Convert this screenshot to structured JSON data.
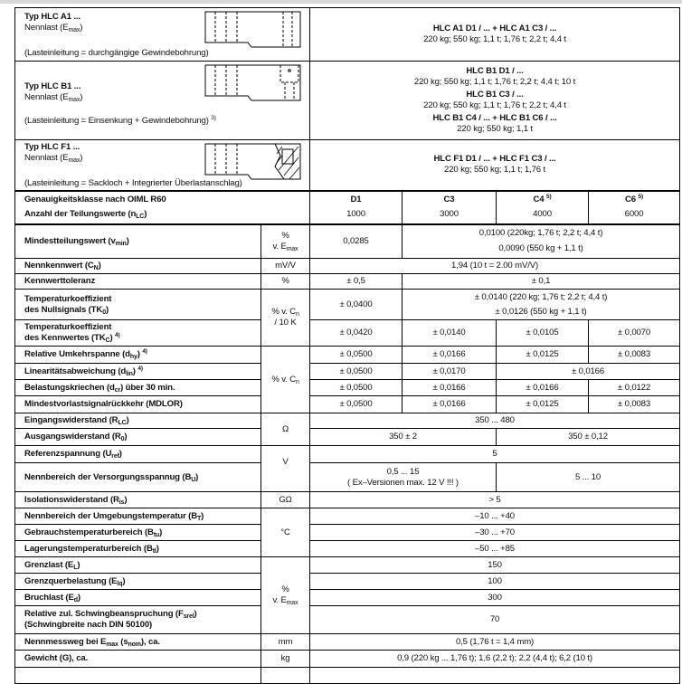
{
  "types": [
    {
      "title": "Typ HLC A1 ...",
      "nennlast": "Nennlast (E",
      "nennlast_sub": "max",
      "nennlast_end": ")",
      "note": "(Lasteinleitung = durchgängige Gewindebohrung)",
      "note_fn": "",
      "models": [
        {
          "name": "HLC A1 D1 / ... + HLC A1 C3 / ...",
          "loads": "220 kg;  550 kg;  1,1 t;  1,76 t;  2,2 t;  4,4 t"
        }
      ]
    },
    {
      "title": "Typ HLC B1 ...",
      "nennlast": "Nennlast (E",
      "nennlast_sub": "max",
      "nennlast_end": ")",
      "note": "(Lasteinleitung = Einsenkung + Gewindebohrung)",
      "note_fn": "3)",
      "models": [
        {
          "name": "HLC B1 D1 / ...",
          "loads": "220 kg;  550 kg;  1,1 t;  1,76 t;  2,2 t;  4,4 t;  10 t"
        },
        {
          "name": "HLC B1 C3 / ...",
          "loads": "220 kg;  550 kg;  1,1 t;  1,76 t;  2,2 t;  4,4 t"
        },
        {
          "name": "HLC B1 C4 / ... + HLC B1 C6 / ...",
          "loads": "220 kg;  550 kg;  1,1 t"
        }
      ]
    },
    {
      "title": "Typ HLC F1 ...",
      "nennlast": "Nennlast (E",
      "nennlast_sub": "max",
      "nennlast_end": ")",
      "note": "(Lasteinleitung = Sackloch + Integrierter Überlastanschlag)",
      "note_fn": "",
      "models": [
        {
          "name": "HLC F1 D1 / ... + HLC F1 C3 / ...",
          "loads": "220 kg;  550 kg;  1,1 t;  1,76 t"
        }
      ]
    }
  ],
  "header": {
    "label1": "Genauigkeitsklasse nach OIML R60",
    "label2": "Anzahl der Teilungswerte (n",
    "label2_sub": "LC",
    "label2_end": ")",
    "classes": [
      {
        "name": "D1",
        "fn": "",
        "n": "1000"
      },
      {
        "name": "C3",
        "fn": "",
        "n": "3000"
      },
      {
        "name": "C4",
        "fn": "5)",
        "n": "4000"
      },
      {
        "name": "C6",
        "fn": "5)",
        "n": "6000"
      }
    ]
  },
  "rows": {
    "vmin": {
      "label": "Mindestteilungswert (v",
      "sub": "min",
      "end": ")",
      "unit": "%",
      "unit2": "v. E",
      "unit2_sub": "max",
      "d1": "0,0285",
      "rest1": "0,0100 (220kg;  1,76 t;  2,2 t;  4,4 t)",
      "rest2": "0,0090 (550 kg  +  1,1 t)"
    },
    "cn": {
      "label": "Nennkennwert (C",
      "sub": "N",
      "end": ")",
      "unit": "mV/V",
      "value": "1,94 (10 t = 2.00 mV/V)"
    },
    "tol": {
      "label": "Kennwerttoleranz",
      "unit": "%",
      "d1": "± 0,5",
      "rest": "± 0,1"
    },
    "tk0": {
      "label1": "Temperaturkoeffizient",
      "label2": "des Nullsignals (TK",
      "sub": "0",
      "end": ")",
      "unit": "% v. C",
      "unit_sub": "n",
      "unit2": "/ 10 K",
      "d1": "± 0,0400",
      "rest1": "± 0,0140 (220 kg;  1,76 t;  2,2 t;  4,4 t)",
      "rest2": "± 0,0126 (550 kg  +  1,1 t)"
    },
    "tkc": {
      "label1": "Temperaturkoeffizient",
      "label2": "des Kennwertes (TK",
      "sub": "C",
      "end": ")",
      "fn": "4)",
      "values": [
        "± 0,0420",
        "± 0,0140",
        "± 0,0105",
        "± 0,0070"
      ]
    },
    "dhy": {
      "label": "Relative Umkehrspanne (d",
      "sub": "hy",
      "end": ")",
      "fn": "4)",
      "unit": "% v. C",
      "unit_sub": "n",
      "values": [
        "± 0,0500",
        "± 0,0166",
        "± 0,0125",
        "± 0,0083"
      ]
    },
    "dlin": {
      "label": "Linearitätsabweichung (d",
      "sub": "lin",
      "end": ")",
      "fn": "4)",
      "values": [
        "± 0,0500",
        "± 0,0170",
        "± 0,0166"
      ]
    },
    "dcr": {
      "label": "Belastungskriechen (d",
      "sub": "cr",
      "end": ") über 30 min.",
      "values": [
        "± 0,0500",
        "± 0,0166",
        "± 0,0166",
        "± 0,0122"
      ]
    },
    "mdlor": {
      "label": "Mindestvorlastsignalrückkehr (MDLOR)",
      "values": [
        "± 0,0500",
        "± 0,0166",
        "± 0,0125",
        "± 0,0083"
      ]
    },
    "rlc": {
      "label": "Eingangswiderstand (R",
      "sub": "LC",
      "end": ")",
      "unit": "Ω",
      "value": "350 ... 480"
    },
    "r0": {
      "label": "Ausgangswiderstand (R",
      "sub": "0",
      "end": ")",
      "values": [
        "350 ± 2",
        "350 ± 0,12"
      ]
    },
    "uref": {
      "label": "Referenzspannung (U",
      "sub": "ref",
      "end": ")",
      "unit": "V",
      "value": "5"
    },
    "bu": {
      "label": "Nennbereich der Versorgungsspannug (B",
      "sub": "U",
      "end": ")",
      "value1a": "0,5 ... 15",
      "value1b": "( Ex–Versionen max. 12 V !!! )",
      "value2": "5 ... 10"
    },
    "ris": {
      "label": "Isolationswiderstand (R",
      "sub": "is",
      "end": ")",
      "unit": "GΩ",
      "value": "> 5"
    },
    "bt": {
      "label": "Nennbereich der Umgebungstemperatur (B",
      "sub": "T",
      "end": ")",
      "unit": "°C",
      "value": "–10 ... +40"
    },
    "btu": {
      "label": "Gebrauchstemperaturbereich (B",
      "sub": "tu",
      "end": ")",
      "value": "–30 ... +70"
    },
    "btl": {
      "label": "Lagerungstemperaturbereich (B",
      "sub": "tl",
      "end": ")",
      "value": "–50 ... +85"
    },
    "el": {
      "label": "Grenzlast (E",
      "sub": "L",
      "end": ")",
      "unit": "%",
      "unit2": "v. E",
      "unit2_sub": "max",
      "value": "150"
    },
    "elq": {
      "label": "Grenzquerbelastung (E",
      "sub": "lq",
      "end": ")",
      "value": "100"
    },
    "ed": {
      "label": "Bruchlast (E",
      "sub": "d",
      "end": ")",
      "value": "300"
    },
    "fsrel": {
      "label": "Relative zul. Schwingbeanspruchung (F",
      "sub": "srel",
      "end": ")",
      "label2": "(Schwingbreite nach DIN 50100)",
      "value": "70"
    },
    "snom": {
      "label": "Nennmessweg bei E",
      "sub": "max",
      "mid": " (s",
      "sub2": "nom",
      "end": "), ca.",
      "unit": "mm",
      "value": "0,5 (1,76 t = 1,4 mm)"
    },
    "g": {
      "label": "Gewicht (G), ca.",
      "unit": "kg",
      "value": "0,9 (220 kg ... 1,76 t);   1,6 (2,2 t);   2,2 (4,4 t);   6,2 (10 t)"
    }
  }
}
